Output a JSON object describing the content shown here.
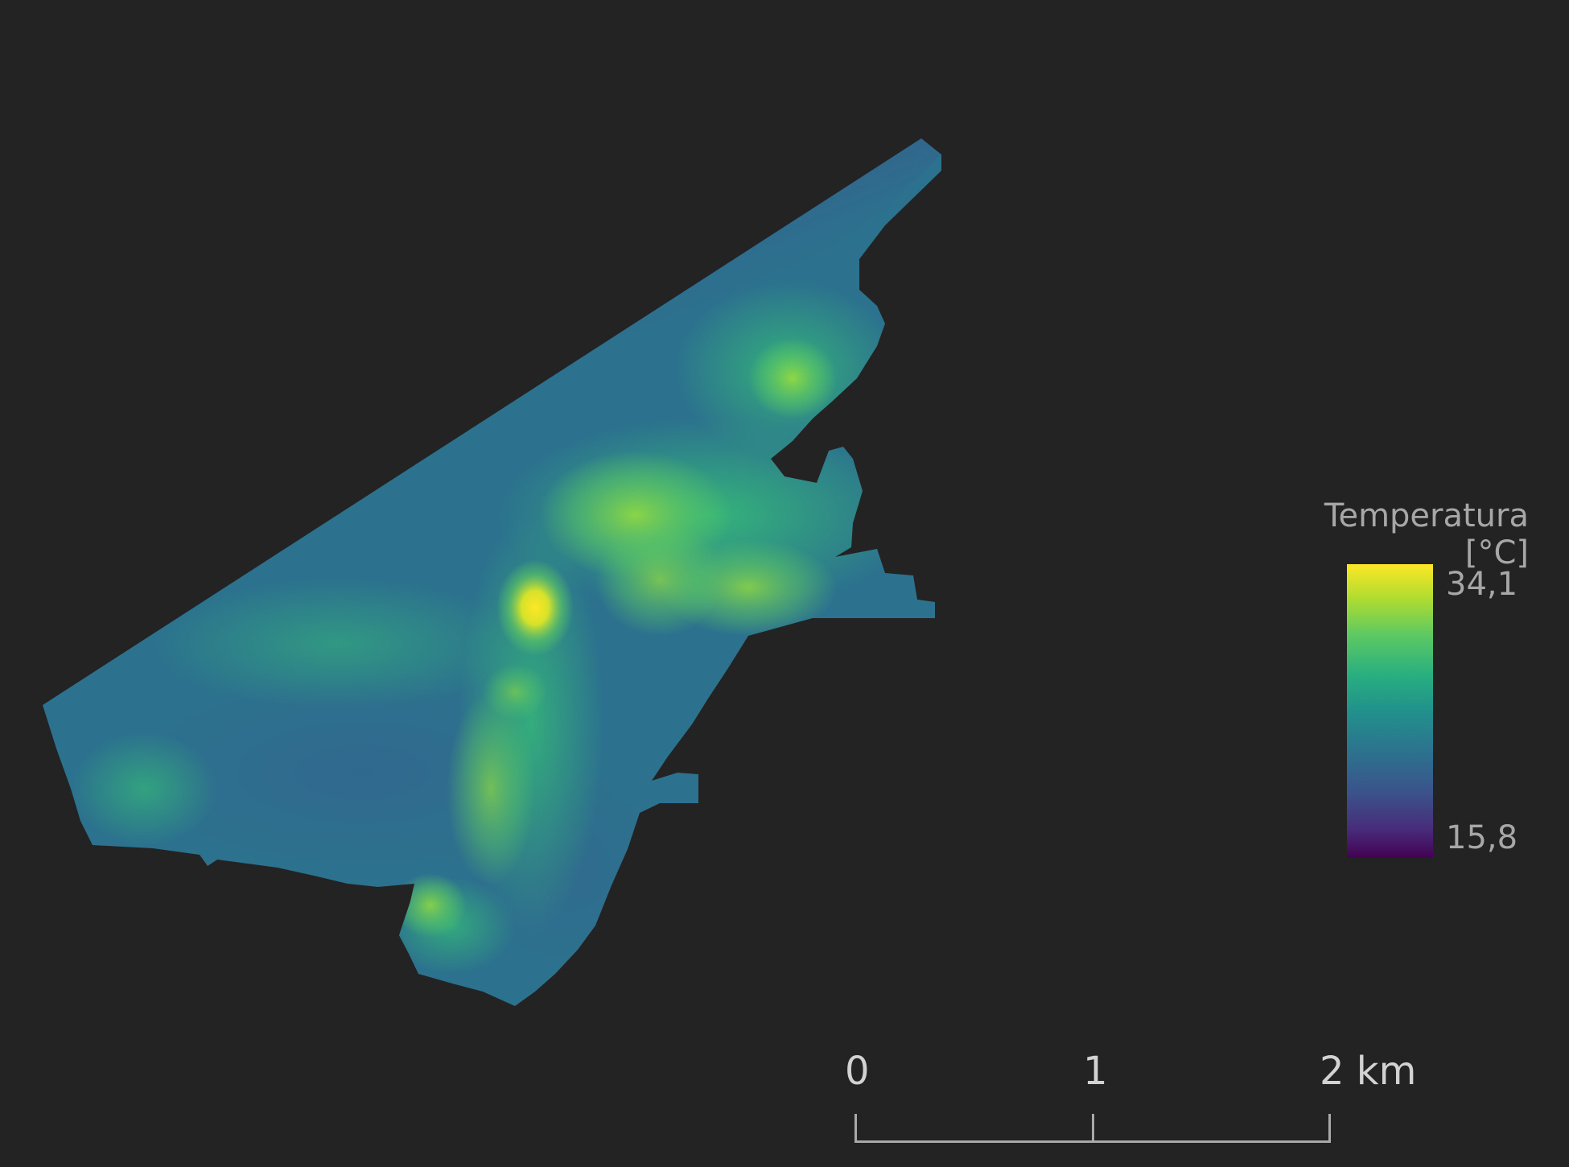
{
  "legend": {
    "title": "Temperatura [°C]",
    "max_label": "34,1",
    "min_label": "15,8",
    "max_value": 34.1,
    "min_value": 15.8,
    "colormap": [
      "#440154",
      "#472d7b",
      "#3b528b",
      "#2c728e",
      "#21918c",
      "#28ae80",
      "#5ec962",
      "#addc30",
      "#fde725"
    ]
  },
  "scale_bar": {
    "labels": [
      "0",
      "1",
      "2 km"
    ],
    "color": "#a9a9a9"
  },
  "colors": {
    "background": "#232323",
    "legend_text": "#a7a7a7",
    "scale_text": "#d2d2d2"
  }
}
